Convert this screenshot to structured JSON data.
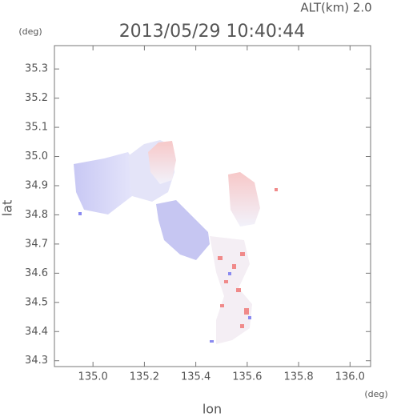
{
  "chart_data": {
    "type": "map",
    "title": "2013/05/29 10:40:44",
    "subtitle": "ALT(km) 2.0",
    "x_label": "lon",
    "y_label": "lat",
    "x_unit": "(deg)",
    "y_unit": "(deg)",
    "xlim": [
      134.85,
      136.08
    ],
    "ylim": [
      34.28,
      35.38
    ],
    "xticks": [
      {
        "value": 135.0,
        "label": "135.0"
      },
      135.2,
      135.4,
      135.6,
      135.8,
      {
        "value": 136.0,
        "label": "136.0"
      }
    ],
    "yticks": [
      35.3,
      35.2,
      35.1,
      {
        "value": 35.0,
        "label": "35.0"
      },
      34.9,
      34.8,
      34.7,
      34.6,
      34.5,
      34.4,
      34.3
    ]
  }
}
